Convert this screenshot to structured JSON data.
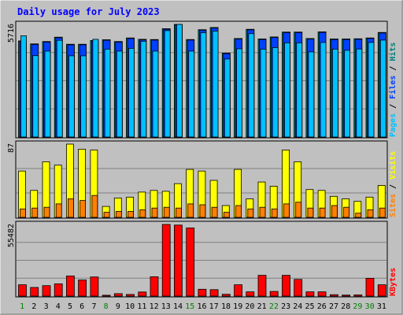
{
  "chart_data": {
    "type": "bar",
    "title": "Daily usage for July 2023",
    "categories": [
      "1",
      "2",
      "3",
      "4",
      "5",
      "6",
      "7",
      "8",
      "9",
      "10",
      "11",
      "12",
      "13",
      "14",
      "15",
      "16",
      "17",
      "18",
      "19",
      "20",
      "21",
      "22",
      "23",
      "24",
      "25",
      "26",
      "27",
      "28",
      "29",
      "30",
      "31"
    ],
    "weekend_days": [
      "1",
      "8",
      "15",
      "22",
      "29",
      "30"
    ],
    "panels": [
      {
        "id": "hits",
        "scale_max_label": "5716",
        "scale_max": 5716,
        "legend": [
          "Pages",
          "Files",
          "Hits"
        ],
        "legend_colors": [
          "#00c0ff",
          "#0040ff",
          "#008080"
        ],
        "series": [
          {
            "name": "Hits",
            "color": "#008080",
            "values": [
              4880,
              4730,
              4850,
              5070,
              4710,
              4710,
              4900,
              4940,
              4850,
              5030,
              4960,
              4950,
              5500,
              5720,
              4950,
              5450,
              5560,
              4260,
              5000,
              5470,
              4980,
              5080,
              5330,
              5330,
              5000,
              5340,
              4980,
              4980,
              4990,
              5030,
              5310
            ]
          },
          {
            "name": "Files",
            "color": "#0040ff",
            "values": [
              4850,
              4700,
              4820,
              5040,
              4680,
              4680,
              4870,
              4910,
              4820,
              5000,
              4930,
              4920,
              5470,
              5690,
              4920,
              5420,
              5530,
              4230,
              4970,
              5440,
              4950,
              5050,
              5300,
              5300,
              4970,
              5310,
              4950,
              4950,
              4960,
              5000,
              5280
            ]
          },
          {
            "name": "Pages",
            "color": "#00c0ff",
            "values": [
              5140,
              4130,
              4360,
              4910,
              4120,
              4120,
              4960,
              4460,
              4360,
              4500,
              4860,
              4360,
              5400,
              5716,
              4360,
              5300,
              5380,
              3960,
              4480,
              5250,
              4460,
              4540,
              4780,
              4780,
              4320,
              4800,
              4460,
              4400,
              4470,
              4800,
              4920
            ]
          }
        ]
      },
      {
        "id": "visits",
        "scale_max_label": "87",
        "scale_max": 87,
        "legend": [
          "Sites",
          "Visits"
        ],
        "legend_colors": [
          "#ff8000",
          "#ffff00"
        ],
        "series": [
          {
            "name": "Visits",
            "color": "#ffff00",
            "values": [
              55,
              32,
              66,
              62,
              87,
              81,
              80,
              13,
              23,
              24,
              30,
              32,
              31,
              40,
              57,
              55,
              44,
              14,
              57,
              22,
              42,
              37,
              80,
              66,
              33,
              32,
              25,
              22,
              19,
              24,
              38
            ]
          },
          {
            "name": "Sites",
            "color": "#ff8000",
            "values": [
              10,
              11,
              12,
              16,
              22,
              20,
              26,
              6,
              7,
              7,
              9,
              11,
              12,
              11,
              16,
              15,
              12,
              6,
              14,
              10,
              12,
              10,
              16,
              18,
              11,
              11,
              14,
              12,
              5,
              9,
              11
            ]
          }
        ]
      },
      {
        "id": "kbytes",
        "scale_max_label": "55482",
        "scale_max": 55482,
        "legend": [
          "KBytes"
        ],
        "legend_colors": [
          "#ff0000"
        ],
        "series": [
          {
            "name": "KBytes",
            "color": "#ff0000",
            "values": [
              8800,
              6700,
              8100,
              9500,
              15600,
              12500,
              14800,
              700,
              1900,
              1300,
              3200,
              15000,
              55482,
              55000,
              52800,
              5300,
              5000,
              1400,
              8800,
              3300,
              16100,
              3600,
              16100,
              12900,
              3300,
              3300,
              1100,
              800,
              900,
              13800,
              8800
            ]
          }
        ]
      }
    ]
  }
}
